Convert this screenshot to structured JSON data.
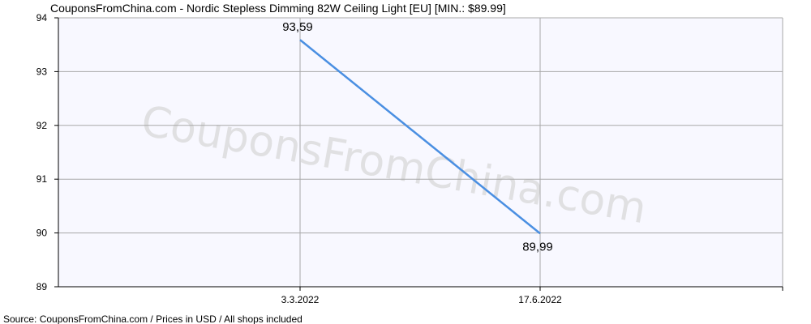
{
  "chart_data": {
    "type": "line",
    "title": "CouponsFromChina.com - Nordic Stepless Dimming 82W Ceiling Light [EU] [MIN.: $89.99]",
    "x_categories": [
      "3.3.2022",
      "17.6.2022"
    ],
    "series": [
      {
        "values": [
          93.59,
          89.99
        ],
        "data_labels": [
          "93,59",
          "89,99"
        ]
      }
    ],
    "ylim": [
      89,
      94
    ],
    "y_ticks": [
      "89",
      "90",
      "91",
      "92",
      "93",
      "94"
    ],
    "grid": true,
    "legend": "none",
    "watermark": "CouponsFromChina.com",
    "footer": "Source: CouponsFromChina.com / Prices in USD / All shops included",
    "colors": {
      "line": "#4a8fe2",
      "grid": "#a8a8a8",
      "plot_background": "#f8f8ff",
      "axis": "#000000"
    }
  }
}
